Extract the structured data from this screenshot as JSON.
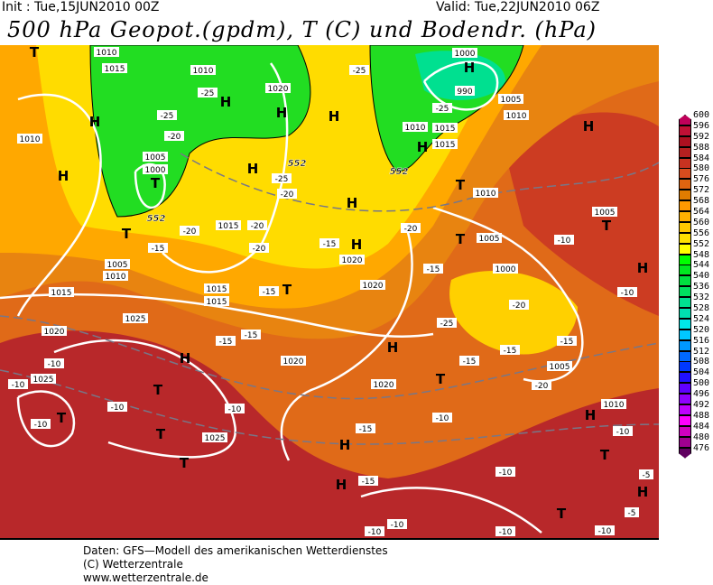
{
  "header": {
    "init": "Init : Tue,15JUN2010 00Z",
    "valid": "Valid: Tue,22JUN2010 06Z",
    "title": "500 hPa Geopot.(gpdm), T (C) und Bodendr. (hPa)"
  },
  "legend": {
    "levels": [
      {
        "v": "600",
        "c": "#c0005a"
      },
      {
        "v": "596",
        "c": "#c01035"
      },
      {
        "v": "592",
        "c": "#ac1020"
      },
      {
        "v": "588",
        "c": "#b42020"
      },
      {
        "v": "584",
        "c": "#c83220"
      },
      {
        "v": "580",
        "c": "#d84c1e"
      },
      {
        "v": "576",
        "c": "#e06410"
      },
      {
        "v": "572",
        "c": "#e07c00"
      },
      {
        "v": "568",
        "c": "#ff9800"
      },
      {
        "v": "564",
        "c": "#ffb000"
      },
      {
        "v": "560",
        "c": "#ffc800"
      },
      {
        "v": "556",
        "c": "#ffe000"
      },
      {
        "v": "552",
        "c": "#ffff00"
      },
      {
        "v": "548",
        "c": "#00ff00"
      },
      {
        "v": "544",
        "c": "#00e820"
      },
      {
        "v": "540",
        "c": "#00e040"
      },
      {
        "v": "536",
        "c": "#00e060"
      },
      {
        "v": "532",
        "c": "#00e090"
      },
      {
        "v": "528",
        "c": "#00e0b0"
      },
      {
        "v": "524",
        "c": "#00e8e8"
      },
      {
        "v": "520",
        "c": "#00c8ff"
      },
      {
        "v": "516",
        "c": "#0098ff"
      },
      {
        "v": "512",
        "c": "#0068ff"
      },
      {
        "v": "508",
        "c": "#0038ff"
      },
      {
        "v": "504",
        "c": "#2010ff"
      },
      {
        "v": "500",
        "c": "#6000ff"
      },
      {
        "v": "496",
        "c": "#9000ff"
      },
      {
        "v": "492",
        "c": "#c000ff"
      },
      {
        "v": "488",
        "c": "#ff00ff"
      },
      {
        "v": "484",
        "c": "#d000c0"
      },
      {
        "v": "480",
        "c": "#a00090"
      },
      {
        "v": "476",
        "c": "#600060"
      }
    ]
  },
  "map": {
    "pressure_centers": [
      "H",
      "H",
      "T",
      "T",
      "H",
      "H",
      "T",
      "H",
      "H",
      "T",
      "T",
      "H",
      "H",
      "T",
      "H",
      "H",
      "H",
      "T",
      "H",
      "T",
      "H",
      "T",
      "H",
      "H",
      "T",
      "T",
      "H",
      "H",
      "T",
      "H",
      "T",
      "T"
    ],
    "isobar_labels": [
      "1015",
      "1010",
      "1010",
      "1020",
      "1010",
      "1005",
      "1000",
      "1015",
      "1015",
      "1005",
      "1010",
      "1015",
      "1015",
      "1020",
      "1020",
      "1025",
      "1025",
      "1020",
      "1020",
      "1025",
      "1010",
      "1005",
      "1000",
      "1005",
      "1010",
      "1005",
      "1010",
      "1015",
      "1015",
      "1010",
      "1020",
      "1005",
      "1000",
      "990"
    ],
    "temperature_labels": [
      "-25",
      "-25",
      "-20",
      "-20",
      "-25",
      "-20",
      "-20",
      "-15",
      "-20",
      "-15",
      "-15",
      "-15",
      "-15",
      "-10",
      "-10",
      "-10",
      "-10",
      "-10",
      "-15",
      "-20",
      "-15",
      "-25",
      "-20",
      "-15",
      "-15",
      "-20",
      "-15",
      "-10",
      "-15",
      "-10",
      "-10",
      "-10",
      "-10",
      "-10",
      "-5",
      "-5",
      "-10",
      "-25",
      "-25",
      "-10",
      "-10"
    ],
    "geopot_labels": [
      "552",
      "552",
      "552"
    ]
  },
  "footer": {
    "line1": "Daten: GFS—Modell des amerikanischen Wetterdienstes",
    "line2": "(C) Wetterzentrale",
    "line3": "www.wetterzentrale.de"
  }
}
